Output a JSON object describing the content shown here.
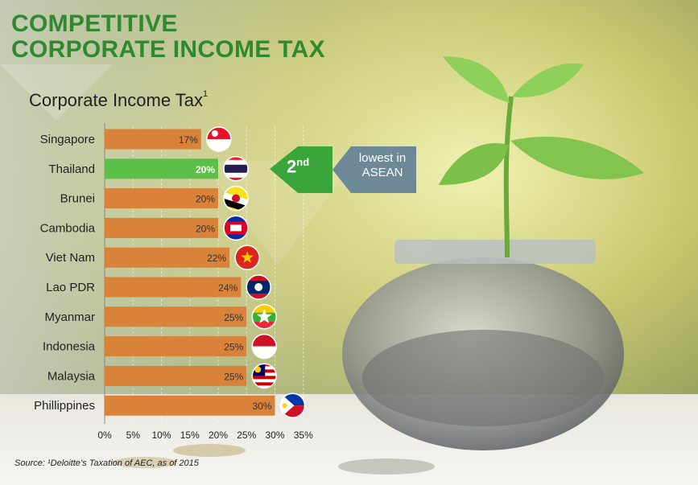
{
  "title": {
    "line1": "COMPETITIVE",
    "line2": "CORPORATE INCOME TAX"
  },
  "subtitle": "Corporate Income Tax",
  "subtitle_superscript": "1",
  "callout": {
    "rank_number": "2",
    "rank_suffix": "nd",
    "text_line1": "lowest in",
    "text_line2": "ASEAN"
  },
  "source": "Source: ¹Deloitte’s Taxation of AEC, as of 2015",
  "colors": {
    "title": "#2e8a2e",
    "bar": "#d9823a",
    "highlight_bar": "#5cbf4a",
    "callout_green": "#3aa53a",
    "callout_gray": "#6d8896"
  },
  "chart_data": {
    "type": "bar",
    "orientation": "horizontal",
    "categories": [
      "Singapore",
      "Thailand",
      "Brunei",
      "Cambodia",
      "Viet Nam",
      "Lao PDR",
      "Myanmar",
      "Indonesia",
      "Malaysia",
      "Phillippines"
    ],
    "values": [
      17,
      20,
      20,
      20,
      22,
      24,
      25,
      25,
      25,
      30
    ],
    "data_labels": [
      "17%",
      "20%",
      "20%",
      "20%",
      "22%",
      "24%",
      "25%",
      "25%",
      "25%",
      "30%"
    ],
    "highlight": "Thailand",
    "flag_icons": [
      "singapore-flag-icon",
      "thailand-flag-icon",
      "brunei-flag-icon",
      "cambodia-flag-icon",
      "vietnam-flag-icon",
      "laos-flag-icon",
      "myanmar-flag-icon",
      "indonesia-flag-icon",
      "malaysia-flag-icon",
      "philippines-flag-icon"
    ],
    "xlim": [
      0,
      35
    ],
    "xticks": [
      "0%",
      "5%",
      "10%",
      "15%",
      "20%",
      "25%",
      "30%",
      "35%"
    ],
    "grid": true
  }
}
